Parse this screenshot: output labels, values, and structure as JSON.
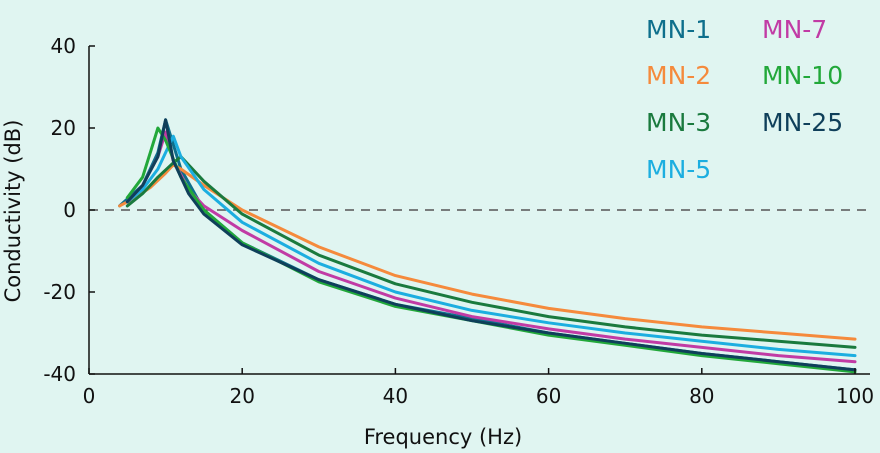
{
  "chart_data": {
    "type": "line",
    "title": "",
    "xlabel": "Frequency (Hz)",
    "ylabel": "Conductivity (dB)",
    "xlim": [
      0,
      100
    ],
    "ylim": [
      -40,
      40
    ],
    "x_ticks": [
      0,
      20,
      40,
      60,
      80,
      100
    ],
    "y_ticks": [
      40,
      20,
      0,
      -20,
      -40
    ],
    "x_tick_labels": [
      "0",
      "20",
      "40",
      "60",
      "80",
      "100"
    ],
    "y_tick_labels": [
      "40",
      "20",
      "0",
      "-20",
      "-40"
    ],
    "reference_line": {
      "y": 0,
      "style": "dashed"
    },
    "grid": false,
    "legend": {
      "placement": "top-right",
      "columns": 2
    },
    "series": [
      {
        "name": "MN-1",
        "color": "#0e6f8c",
        "x": [
          4,
          7,
          9,
          10,
          12,
          15,
          20,
          30,
          40,
          50,
          60,
          70,
          80,
          90,
          100
        ],
        "y": [
          1,
          6,
          14,
          22,
          10,
          0,
          -8,
          -17,
          -23,
          -26.5,
          -30,
          -32.5,
          -35,
          -37,
          -39
        ]
      },
      {
        "name": "MN-2",
        "color": "#f58a3c",
        "x": [
          4,
          6,
          8,
          10,
          11,
          12,
          15,
          20,
          30,
          40,
          50,
          60,
          70,
          80,
          90,
          100
        ],
        "y": [
          1,
          3,
          5.5,
          9,
          11,
          10,
          6,
          0,
          -9,
          -16,
          -20.5,
          -24,
          -26.5,
          -28.5,
          -30,
          -31.5
        ]
      },
      {
        "name": "MN-3",
        "color": "#1a7a3e",
        "x": [
          5,
          7,
          9,
          11,
          12,
          13,
          15,
          20,
          30,
          40,
          50,
          60,
          70,
          80,
          90,
          100
        ],
        "y": [
          1,
          4,
          8,
          11.5,
          13,
          11,
          7,
          -1,
          -11,
          -18,
          -22.5,
          -26,
          -28.5,
          -30.5,
          -32,
          -33.5
        ]
      },
      {
        "name": "MN-5",
        "color": "#1caee0",
        "x": [
          5,
          7,
          9,
          10,
          11,
          12,
          15,
          20,
          30,
          40,
          50,
          60,
          70,
          80,
          90,
          100
        ],
        "y": [
          2,
          5,
          10,
          14,
          18,
          13,
          5,
          -3,
          -13,
          -20,
          -24.5,
          -27.5,
          -30,
          -32,
          -34,
          -35.5
        ]
      },
      {
        "name": "MN-7",
        "color": "#c13ba5",
        "x": [
          5,
          7,
          9,
          10,
          11,
          13,
          15,
          20,
          30,
          40,
          50,
          60,
          70,
          80,
          90,
          100
        ],
        "y": [
          2,
          6,
          13,
          19,
          12,
          5,
          1,
          -5,
          -15,
          -21.5,
          -26,
          -29,
          -31.5,
          -33.5,
          -35.5,
          -37
        ]
      },
      {
        "name": "MN-10",
        "color": "#22a83a",
        "x": [
          5,
          7,
          8,
          9,
          10,
          12,
          15,
          20,
          30,
          40,
          50,
          60,
          70,
          80,
          90,
          100
        ],
        "y": [
          3,
          8,
          14,
          20,
          17,
          8,
          0,
          -8,
          -17.5,
          -23.5,
          -27,
          -30.5,
          -33,
          -35.5,
          -37.5,
          -39.5
        ]
      },
      {
        "name": "MN-25",
        "color": "#0f3f5a",
        "x": [
          5,
          7,
          9,
          10,
          11,
          13,
          15,
          20,
          30,
          40,
          50,
          60,
          70,
          80,
          90,
          100
        ],
        "y": [
          2,
          6,
          13,
          22,
          12,
          4,
          -1,
          -8.5,
          -17,
          -23,
          -27,
          -30,
          -32.5,
          -35,
          -37,
          -39
        ]
      }
    ]
  }
}
